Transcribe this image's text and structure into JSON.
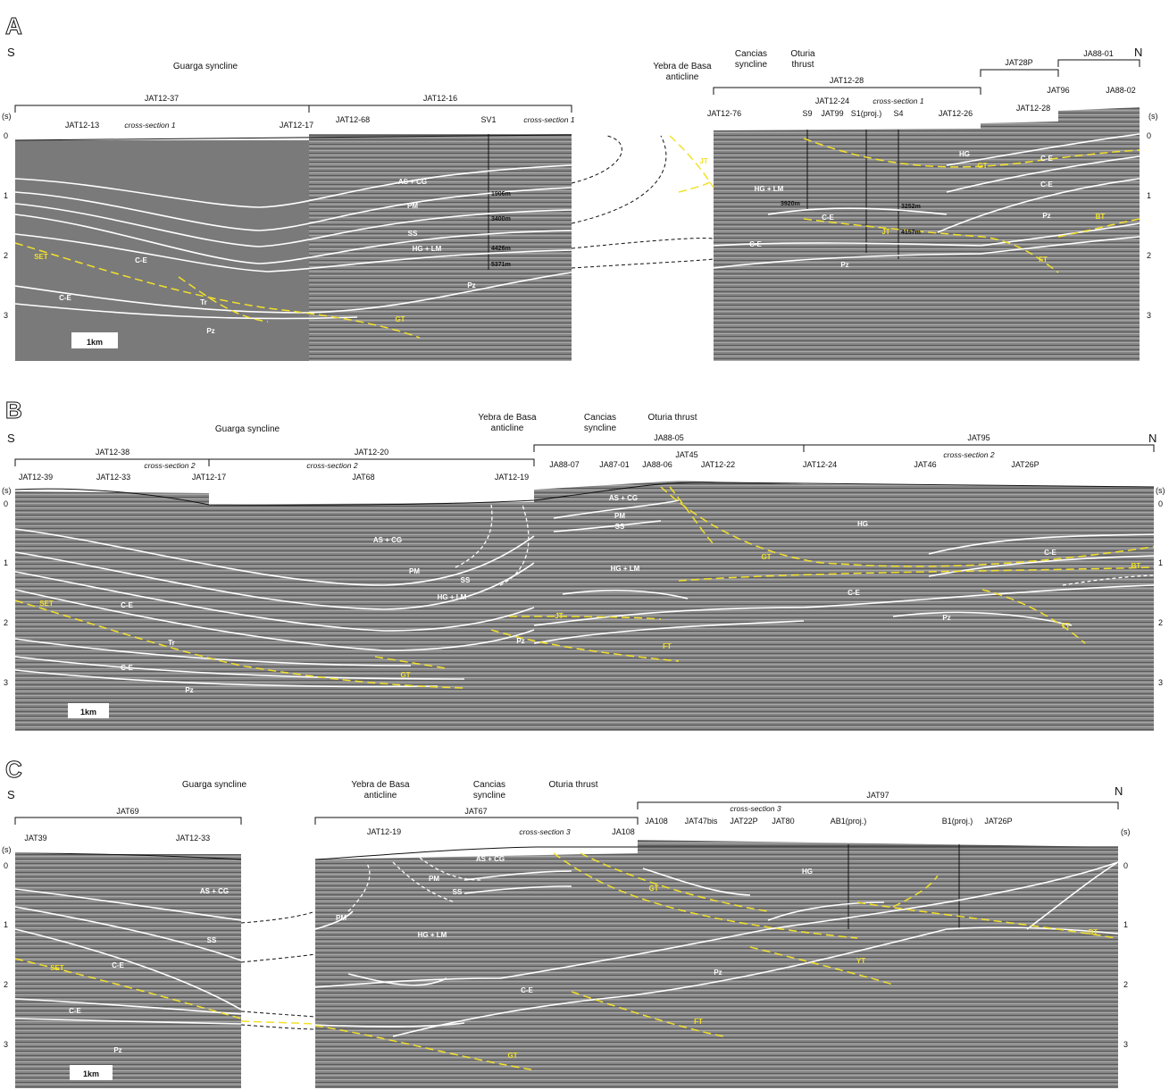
{
  "panels": [
    {
      "letter": "A",
      "dir_left": "S",
      "dir_right": "N",
      "geology": [
        "Guarga syncline",
        "Yebra de Basa",
        "anticline",
        "Cancias",
        "syncline",
        "Oturia",
        "thrust"
      ],
      "lines": [
        "JAT12-37",
        "JAT12-16",
        "JAT12-28",
        "JAT28P",
        "JA88-01"
      ],
      "wells": [
        "JAT12-13",
        "JAT12-17",
        "JAT12-68",
        "SV1",
        "JAT12-76",
        "S9",
        "JAT12-24",
        "JAT99",
        "S1(proj.)",
        "S4",
        "JAT12-26",
        "JAT12-28",
        "JAT96",
        "JA88-02"
      ],
      "cross_section": "cross-section 1",
      "units": [
        "AS + CG",
        "PM",
        "SS",
        "HG + LM",
        "C-E",
        "C-E",
        "Tr",
        "Pz",
        "Pz",
        "HG",
        "C-E",
        "C-E",
        "Pz",
        "HG + LM",
        "C-E",
        "C-E",
        "Pz"
      ],
      "faults": [
        "SET",
        "GT",
        "JT",
        "JT",
        "GT",
        "FT",
        "BT"
      ],
      "depths": [
        "1906m",
        "3400m",
        "4426m",
        "5371m",
        "3920m",
        "3252m",
        "4157m"
      ],
      "axis_unit": "(s)",
      "ticks": [
        "0",
        "1",
        "2",
        "3"
      ],
      "scale": "1km"
    },
    {
      "letter": "B",
      "dir_left": "S",
      "dir_right": "N",
      "geology": [
        "Guarga syncline",
        "Yebra de Basa",
        "anticline",
        "Cancias",
        "syncline",
        "Oturia thrust"
      ],
      "lines": [
        "JAT12-38",
        "JAT12-20",
        "JA88-05",
        "JAT95"
      ],
      "wells": [
        "JAT12-39",
        "JAT12-33",
        "JAT12-17",
        "JAT68",
        "JAT12-19",
        "JA88-07",
        "JA87-01",
        "JA88-06",
        "JAT45",
        "JAT12-22",
        "JAT12-24",
        "JAT46",
        "JAT26P"
      ],
      "cross_section": "cross-section 2",
      "units": [
        "AS + CG",
        "PM",
        "SS",
        "HG + LM",
        "C-E",
        "Tr",
        "C-E",
        "Pz",
        "Pz",
        "AS + CG",
        "PM",
        "SS",
        "HG + LM",
        "HG",
        "C-E",
        "C-E",
        "Pz"
      ],
      "faults": [
        "SET",
        "GT",
        "JT",
        "FT",
        "GT",
        "BT",
        "YT"
      ],
      "axis_unit": "(s)",
      "ticks": [
        "0",
        "1",
        "2",
        "3"
      ],
      "scale": "1km"
    },
    {
      "letter": "C",
      "dir_left": "S",
      "dir_right": "N",
      "geology": [
        "Guarga syncline",
        "Yebra de Basa",
        "anticline",
        "Cancias",
        "syncline",
        "Oturia thrust"
      ],
      "lines": [
        "JAT69",
        "JAT67",
        "JAT97"
      ],
      "wells": [
        "JAT39",
        "JAT12-33",
        "JAT12-19",
        "JA108",
        "JA108",
        "JAT47bis",
        "JAT22P",
        "JAT80",
        "AB1(proj.)",
        "B1(proj.)",
        "JAT26P"
      ],
      "cross_section": "cross-section 3",
      "units": [
        "AS + CG",
        "SS",
        "C-E",
        "C-E",
        "Pz",
        "PM",
        "AS + CG",
        "PM",
        "SS",
        "HG + LM",
        "C-E",
        "Pz",
        "HG"
      ],
      "faults": [
        "SET",
        "GT",
        "FT",
        "GT",
        "YT",
        "BT"
      ],
      "axis_unit": "(s)",
      "ticks": [
        "0",
        "1",
        "2",
        "3"
      ],
      "scale": "1km"
    }
  ]
}
